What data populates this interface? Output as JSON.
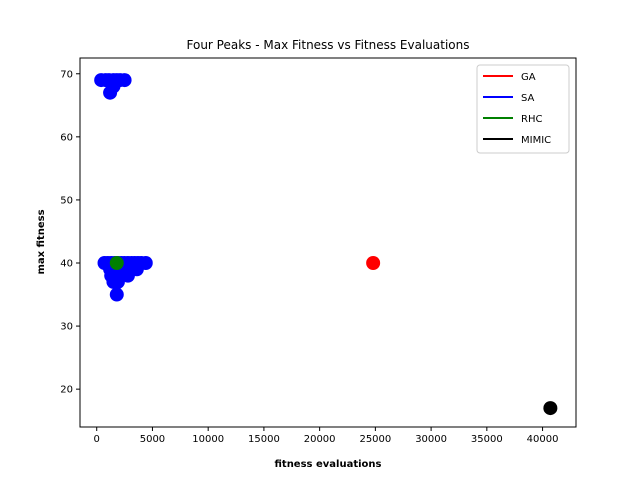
{
  "chart_data": {
    "type": "scatter",
    "title": "Four Peaks - Max Fitness vs Fitness Evaluations",
    "xlabel": "fitness evaluations",
    "ylabel": "max fitness",
    "xlim": [
      -1500,
      43000
    ],
    "ylim": [
      14,
      72.5
    ],
    "xticks": [
      0,
      5000,
      10000,
      15000,
      20000,
      25000,
      30000,
      35000,
      40000
    ],
    "yticks": [
      20,
      30,
      40,
      50,
      60,
      70
    ],
    "grid": false,
    "legend_position": "top-right",
    "series": [
      {
        "name": "GA",
        "color": "#ff0000",
        "points": [
          [
            24800,
            40
          ]
        ]
      },
      {
        "name": "SA",
        "color": "#0000ff",
        "points": [
          [
            400,
            69
          ],
          [
            800,
            69
          ],
          [
            1100,
            69
          ],
          [
            1500,
            69
          ],
          [
            1800,
            69
          ],
          [
            2100,
            69
          ],
          [
            2500,
            69
          ],
          [
            1200,
            67
          ],
          [
            1500,
            68
          ],
          [
            700,
            40
          ],
          [
            1000,
            40
          ],
          [
            1300,
            40
          ],
          [
            1600,
            40
          ],
          [
            1900,
            40
          ],
          [
            2200,
            40
          ],
          [
            2500,
            40
          ],
          [
            2800,
            40
          ],
          [
            3100,
            40
          ],
          [
            3400,
            40
          ],
          [
            3700,
            40
          ],
          [
            4000,
            40
          ],
          [
            4400,
            40
          ],
          [
            1200,
            39
          ],
          [
            1500,
            39
          ],
          [
            1800,
            39
          ],
          [
            2100,
            39
          ],
          [
            2500,
            39
          ],
          [
            3000,
            39
          ],
          [
            3600,
            39
          ],
          [
            1300,
            38
          ],
          [
            1700,
            38
          ],
          [
            2200,
            38
          ],
          [
            2800,
            38
          ],
          [
            1500,
            37
          ],
          [
            1900,
            37
          ],
          [
            1800,
            35
          ]
        ]
      },
      {
        "name": "RHC",
        "color": "#008000",
        "points": [
          [
            1800,
            40
          ]
        ]
      },
      {
        "name": "MIMIC",
        "color": "#000000",
        "points": [
          [
            40700,
            17
          ]
        ]
      }
    ]
  }
}
